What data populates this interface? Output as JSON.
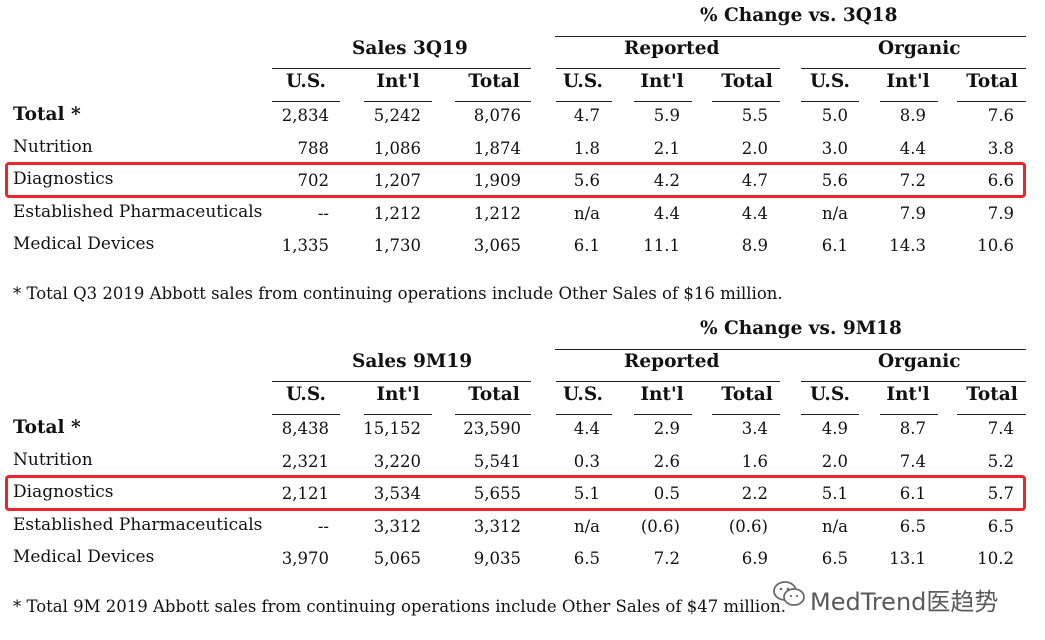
{
  "sections": [
    {
      "change_title": "% Change vs. 3Q18",
      "sales_title": "Sales 3Q19",
      "reported_label": "Reported",
      "organic_label": "Organic",
      "col_labels": [
        "U.S.",
        "Int'l",
        "Total",
        "U.S.",
        "Int'l",
        "Total",
        "U.S.",
        "Int'l",
        "Total"
      ],
      "rows": [
        {
          "label": "Total *",
          "bold": true,
          "values": [
            "2,834",
            "5,242",
            "8,076",
            "4.7",
            "5.9",
            "5.5",
            "5.0",
            "8.9",
            "7.6"
          ]
        },
        {
          "label": "Nutrition",
          "bold": false,
          "values": [
            "788",
            "1,086",
            "1,874",
            "1.8",
            "2.1",
            "2.0",
            "3.0",
            "4.4",
            "3.8"
          ]
        },
        {
          "label": "Diagnostics",
          "bold": false,
          "highlight": true,
          "values": [
            "702",
            "1,207",
            "1,909",
            "5.6",
            "4.2",
            "4.7",
            "5.6",
            "7.2",
            "6.6"
          ]
        },
        {
          "label": "Established Pharmaceuticals",
          "bold": false,
          "values": [
            "--",
            "1,212",
            "1,212",
            "n/a",
            "4.4",
            "4.4",
            "n/a",
            "7.9",
            "7.9"
          ]
        },
        {
          "label": "Medical Devices",
          "bold": false,
          "values": [
            "1,335",
            "1,730",
            "3,065",
            "6.1",
            "11.1",
            "8.9",
            "6.1",
            "14.3",
            "10.6"
          ]
        }
      ],
      "footnote": "* Total Q3 2019 Abbott sales from continuing operations include Other Sales of $16 million."
    },
    {
      "change_title": "% Change vs. 9M18",
      "sales_title": "Sales 9M19",
      "reported_label": "Reported",
      "organic_label": "Organic",
      "col_labels": [
        "U.S.",
        "Int'l",
        "Total",
        "U.S.",
        "Int'l",
        "Total",
        "U.S.",
        "Int'l",
        "Total"
      ],
      "rows": [
        {
          "label": "Total *",
          "bold": true,
          "values": [
            "8,438",
            "15,152",
            "23,590",
            "4.4",
            "2.9",
            "3.4",
            "4.9",
            "8.7",
            "7.4"
          ]
        },
        {
          "label": "Nutrition",
          "bold": false,
          "values": [
            "2,321",
            "3,220",
            "5,541",
            "0.3",
            "2.6",
            "1.6",
            "2.0",
            "7.4",
            "5.2"
          ]
        },
        {
          "label": "Diagnostics",
          "bold": false,
          "highlight": true,
          "values": [
            "2,121",
            "3,534",
            "5,655",
            "5.1",
            "0.5",
            "2.2",
            "5.1",
            "6.1",
            "5.7"
          ]
        },
        {
          "label": "Established Pharmaceuticals",
          "bold": false,
          "values": [
            "--",
            "3,312",
            "3,312",
            "n/a",
            "(0.6)",
            "(0.6)",
            "n/a",
            "6.5",
            "6.5"
          ]
        },
        {
          "label": "Medical Devices",
          "bold": false,
          "values": [
            "3,970",
            "5,065",
            "9,035",
            "6.5",
            "7.2",
            "6.9",
            "6.5",
            "13.1",
            "10.2"
          ]
        }
      ],
      "footnote": "* Total 9M 2019 Abbott sales from continuing operations include Other Sales of $47 million."
    }
  ],
  "watermark": {
    "text": "MedTrend医趋势",
    "icon": "wechat-icon"
  },
  "colors": {
    "highlight": "#e8262b",
    "text": "#111111",
    "rule": "#222222"
  }
}
